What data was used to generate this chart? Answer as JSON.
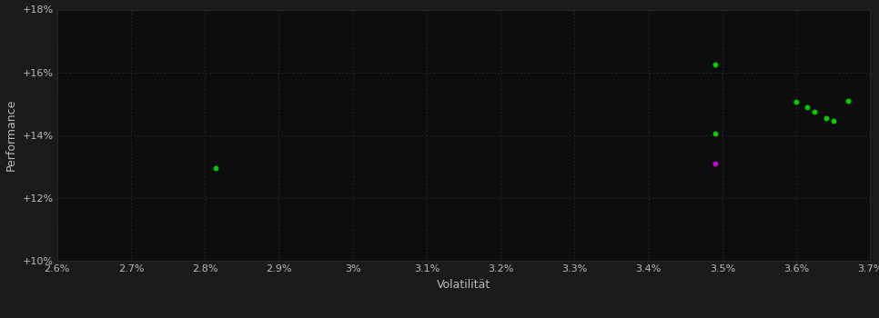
{
  "xlabel": "Volatilität",
  "ylabel": "Performance",
  "background_color": "#1a1a1a",
  "plot_bg_color": "#0d0d0d",
  "grid_color": "#2e2e2e",
  "text_color": "#bbbbbb",
  "xlim": [
    0.026,
    0.037
  ],
  "ylim": [
    0.1,
    0.18
  ],
  "xticks": [
    0.026,
    0.027,
    0.028,
    0.029,
    0.03,
    0.031,
    0.032,
    0.033,
    0.034,
    0.035,
    0.036,
    0.037
  ],
  "yticks": [
    0.1,
    0.12,
    0.14,
    0.16,
    0.18
  ],
  "green_points": [
    [
      0.02815,
      0.1295
    ],
    [
      0.0349,
      0.1625
    ],
    [
      0.0349,
      0.1405
    ],
    [
      0.036,
      0.1505
    ],
    [
      0.03615,
      0.149
    ],
    [
      0.03625,
      0.1475
    ],
    [
      0.0364,
      0.1455
    ],
    [
      0.0365,
      0.1445
    ],
    [
      0.0367,
      0.151
    ]
  ],
  "magenta_points": [
    [
      0.0349,
      0.131
    ]
  ],
  "point_size": 18,
  "dot_color_green": "#00cc00",
  "dot_color_magenta": "#cc00cc"
}
